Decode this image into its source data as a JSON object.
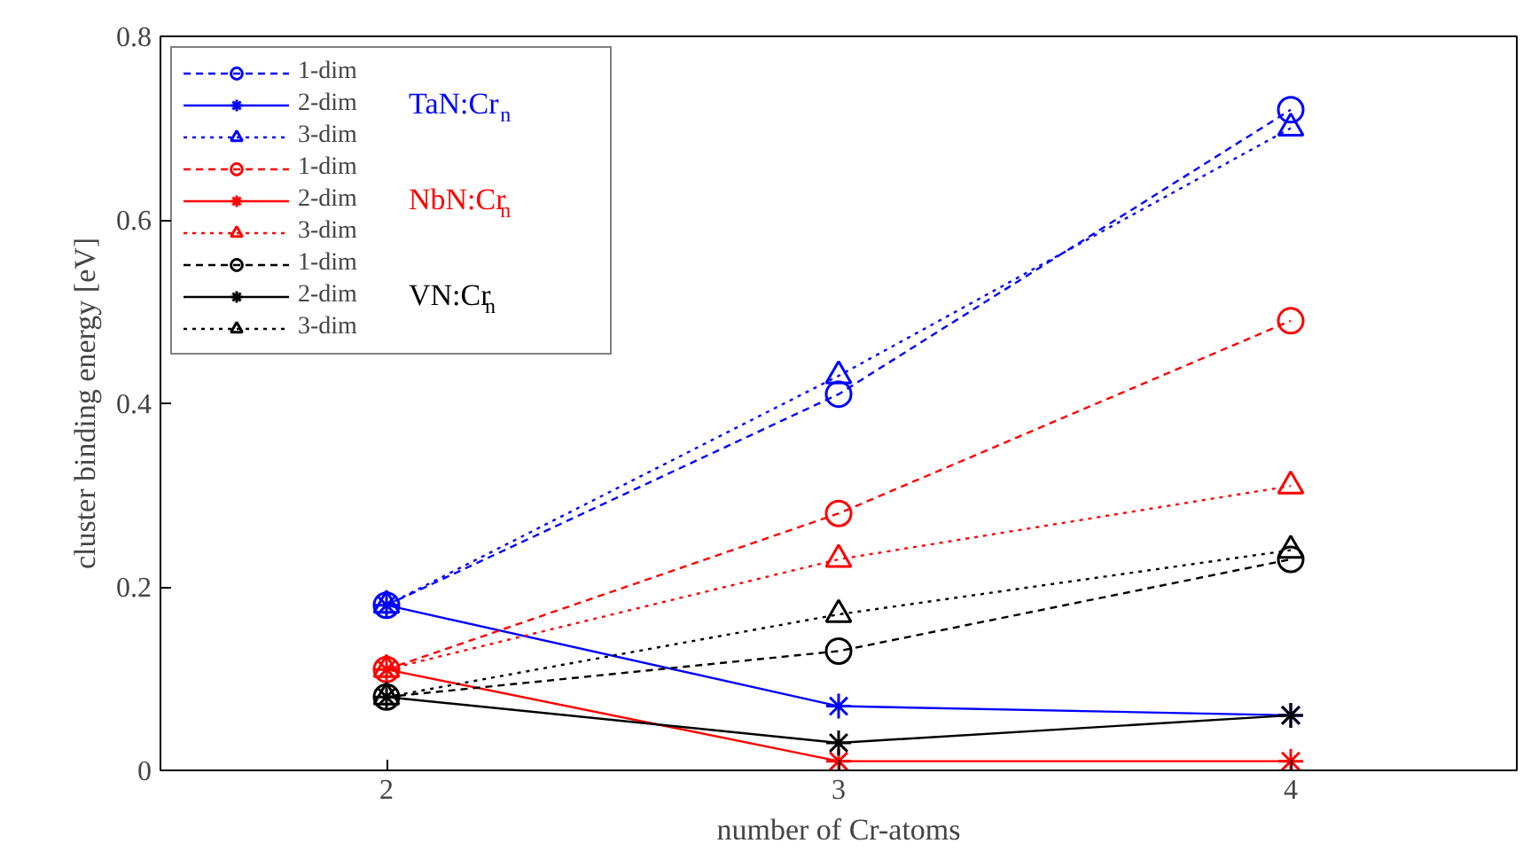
{
  "chart_data": {
    "type": "line",
    "xlabel": "number of Cr-atoms",
    "ylabel": "cluster binding energy [eV]",
    "x": [
      2,
      3,
      4
    ],
    "xlim": [
      1.5,
      4.5
    ],
    "xticks": [
      2,
      3,
      4
    ],
    "ylim": [
      0,
      0.8
    ],
    "yticks": [
      0,
      0.2,
      0.4,
      0.6,
      0.8
    ],
    "grid": false,
    "legend": "top left",
    "annotations": [
      "TaN:Cr$_{n}$",
      "NbN:Cr$_{n}$",
      "VN:Cr$_{n}$"
    ],
    "series": [
      {
        "name": "1-dim",
        "color": "#0000ff",
        "marker": "circle",
        "line_style": "dashed",
        "values": [
          0.18,
          0.41,
          0.72
        ]
      },
      {
        "name": "2-dim",
        "color": "#0000ff",
        "marker": "cross",
        "line_style": "solid",
        "values": [
          0.18,
          0.07,
          0.06
        ]
      },
      {
        "name": "3-dim",
        "color": "#0000ff",
        "marker": "triangle",
        "line_style": "dotted",
        "values": [
          0.18,
          0.43,
          0.7
        ]
      },
      {
        "name": "1-dim",
        "color": "#ff0000",
        "marker": "circle",
        "line_style": "dashed",
        "values": [
          0.11,
          0.28,
          0.49
        ]
      },
      {
        "name": "2-dim",
        "color": "#ff0000",
        "marker": "cross",
        "line_style": "solid",
        "values": [
          0.11,
          0.01,
          0.01
        ]
      },
      {
        "name": "3-dim",
        "color": "#ff0000",
        "marker": "triangle",
        "line_style": "dotted",
        "values": [
          0.11,
          0.23,
          0.31
        ]
      },
      {
        "name": "1-dim",
        "color": "#000000",
        "marker": "circle",
        "line_style": "dashed",
        "values": [
          0.08,
          0.13,
          0.23
        ]
      },
      {
        "name": "2-dim",
        "color": "#000000",
        "marker": "cross",
        "line_style": "solid",
        "values": [
          0.08,
          0.03,
          0.06
        ]
      },
      {
        "name": "3-dim",
        "color": "#000000",
        "marker": "triangle",
        "line_style": "dotted",
        "values": [
          0.08,
          0.17,
          0.24
        ]
      }
    ]
  }
}
